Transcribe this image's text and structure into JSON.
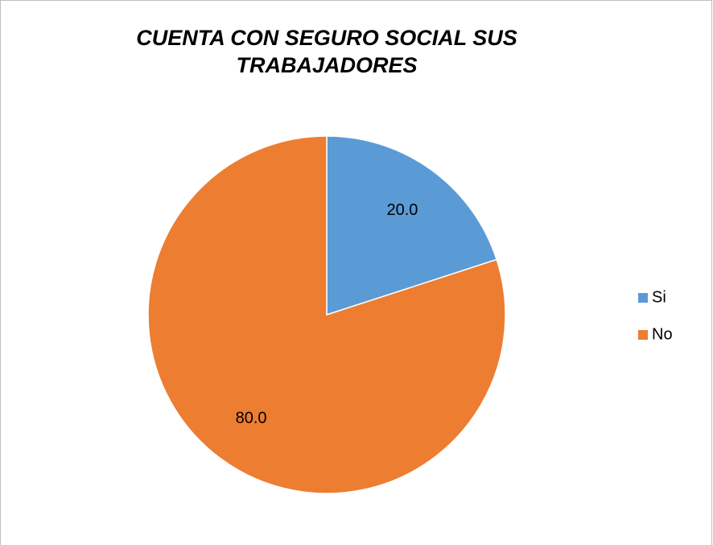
{
  "chart_data": {
    "type": "pie",
    "title": "CUENTA CON SEGURO SOCIAL SUS TRABAJADORES",
    "categories": [
      "Si",
      "No"
    ],
    "values": [
      20,
      80
    ],
    "value_labels": [
      "20.0",
      "80.0"
    ],
    "colors": [
      "#5b9bd5",
      "#ed7d31"
    ],
    "legend": "right"
  }
}
